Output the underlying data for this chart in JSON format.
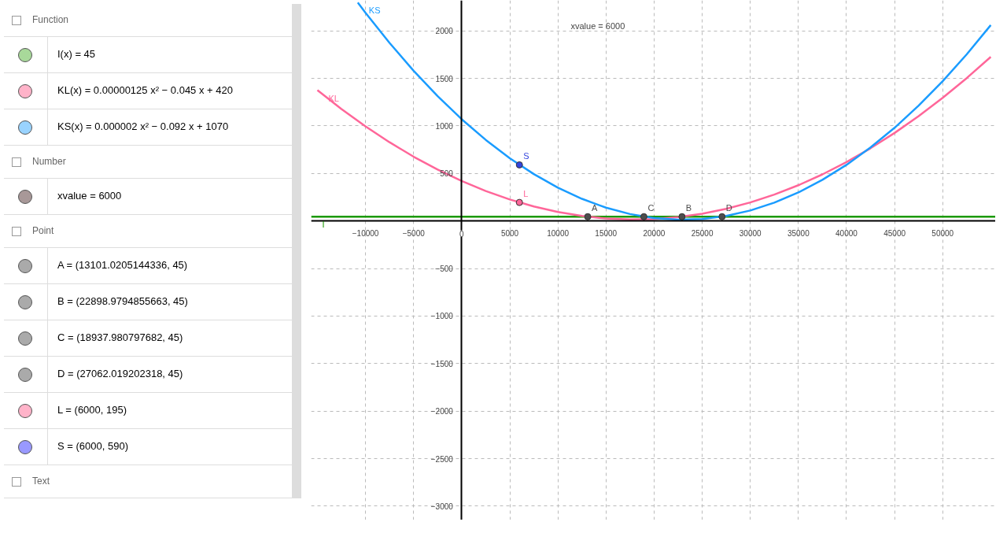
{
  "chart_data": {
    "type": "line",
    "xlim": [
      -15650,
      55500
    ],
    "ylim": [
      -3145,
      2320
    ],
    "xticks": [
      {
        "value": -10000,
        "label": "−10000"
      },
      {
        "value": -5000,
        "label": "−5000"
      },
      0,
      5000,
      10000,
      15000,
      20000,
      25000,
      30000,
      35000,
      40000,
      45000,
      50000
    ],
    "yticks": [
      {
        "value": -3000,
        "label": "−3000"
      },
      {
        "value": -2500,
        "label": "−2500"
      },
      {
        "value": -2000,
        "label": "−2000"
      },
      {
        "value": -1500,
        "label": "−1500"
      },
      {
        "value": -1000,
        "label": "−1000"
      },
      {
        "value": -500,
        "label": "−500"
      },
      {
        "value": 0,
        "label": null
      },
      500,
      1000,
      1500,
      2000
    ],
    "grid": true,
    "line_style": "solid",
    "series": [
      {
        "name": "I",
        "color": "#1a9900",
        "x": [
          -15650,
          55500
        ],
        "values": [
          45,
          45
        ]
      },
      {
        "name": "KL",
        "color": "#ff6699",
        "x": [
          -15000,
          -12500,
          -10000,
          -7500,
          -5000,
          -2500,
          0,
          2500,
          5000,
          7500,
          10000,
          12500,
          15000,
          17500,
          20000,
          22500,
          25000,
          27500,
          30000,
          32500,
          35000,
          37500,
          40000,
          42500,
          45000,
          47500,
          50000,
          52500,
          55000
        ],
        "values": [
          1376,
          1178,
          995,
          828,
          676,
          540,
          420,
          315,
          226,
          153,
          95,
          53,
          26,
          15,
          20,
          40,
          76,
          128,
          195,
          278,
          376,
          490,
          620,
          765,
          926,
          1103,
          1295,
          1503,
          1726
        ]
      },
      {
        "name": "KS",
        "color": "#1a9cff",
        "x": [
          -10800,
          -10000,
          -7500,
          -5000,
          -2500,
          0,
          2500,
          5000,
          7500,
          10000,
          12500,
          15000,
          17500,
          20000,
          22500,
          25000,
          27500,
          30000,
          32500,
          35000,
          37500,
          40000,
          42500,
          45000,
          47500,
          50000,
          52500,
          55000
        ],
        "values": [
          2297,
          2190,
          1873,
          1580,
          1313,
          1070,
          853,
          660,
          493,
          350,
          233,
          140,
          73,
          30,
          13,
          20,
          53,
          110,
          193,
          300,
          433,
          590,
          773,
          980,
          1213,
          1470,
          1753,
          2060
        ]
      },
      {
        "name": "A",
        "type": "scatter",
        "marker": "circle",
        "color": "#4d4d4d",
        "x": [
          13101.0205144336
        ],
        "values": [
          45
        ]
      },
      {
        "name": "B",
        "type": "scatter",
        "marker": "circle",
        "color": "#4d4d4d",
        "x": [
          22898.9794855663
        ],
        "values": [
          45
        ]
      },
      {
        "name": "C",
        "type": "scatter",
        "marker": "circle",
        "color": "#4d4d4d",
        "x": [
          18937.980797682
        ],
        "values": [
          45
        ]
      },
      {
        "name": "D",
        "type": "scatter",
        "marker": "circle",
        "color": "#4d4d4d",
        "x": [
          27062.019202318
        ],
        "values": [
          45
        ]
      },
      {
        "name": "L",
        "type": "scatter",
        "marker": "circle",
        "color": "#ff6699",
        "x": [
          6000
        ],
        "values": [
          195
        ]
      },
      {
        "name": "S",
        "type": "scatter",
        "marker": "circle",
        "color": "#3344dd",
        "x": [
          6000
        ],
        "values": [
          590
        ]
      }
    ],
    "annotations": [
      "Function",
      "I(x) = 45",
      "KL(x) = 0.00000125 x² − 0.045 x + 420",
      "KS(x) = 0.000002 x² − 0.092 x + 1070",
      "Number",
      "xvalue = 6000",
      "Point",
      "A = (13101.0205144336, 45)",
      "B = (22898.9794855663, 45)",
      "C = (18937.980797682, 45)",
      "D = (27062.019202318, 45)",
      "L = (6000, 195)",
      "S = (6000, 590)",
      "Text",
      "xvalue = 6000"
    ]
  }
}
